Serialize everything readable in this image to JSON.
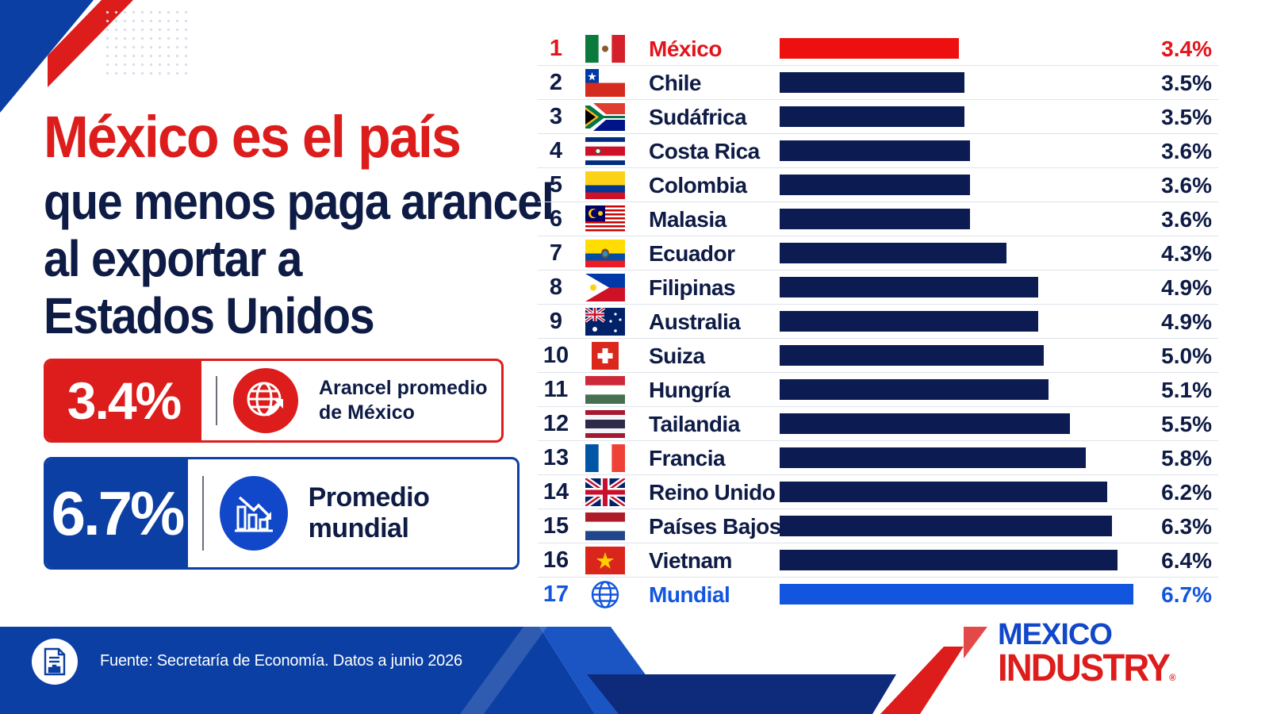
{
  "headline": {
    "line1": "México es el país",
    "line2": "que menos paga arancel",
    "line3": "al exportar a",
    "line4": "Estados Unidos"
  },
  "stat_cards": [
    {
      "value": "3.4%",
      "label": "Arancel promedio de México",
      "icon": "globe-arrow-icon",
      "color": "#dd1c1c"
    },
    {
      "value": "6.7%",
      "label": "Promedio mundial",
      "icon": "bar-chart-down-icon",
      "color": "#0b3fa3"
    }
  ],
  "chart_data": {
    "type": "bar",
    "orientation": "horizontal",
    "title": "",
    "xlabel": "",
    "ylabel": "",
    "xlim": [
      0,
      6.7
    ],
    "grid": false,
    "legend": "none",
    "unit": "%",
    "ranks": [
      "1",
      "2",
      "3",
      "4",
      "5",
      "6",
      "7",
      "8",
      "9",
      "10",
      "11",
      "12",
      "13",
      "14",
      "15",
      "16",
      "17"
    ],
    "categories": [
      "México",
      "Chile",
      "Sudáfrica",
      "Costa Rica",
      "Colombia",
      "Malasia",
      "Ecuador",
      "Filipinas",
      "Australia",
      "Suiza",
      "Hungría",
      "Tailandia",
      "Francia",
      "Reino Unido",
      "Países Bajos",
      "Vietnam",
      "Mundial"
    ],
    "values": [
      3.4,
      3.5,
      3.5,
      3.6,
      3.6,
      3.6,
      4.3,
      4.9,
      4.9,
      5.0,
      5.1,
      5.5,
      5.8,
      6.2,
      6.3,
      6.4,
      6.7
    ],
    "labels": [
      "3.4%",
      "3.5%",
      "3.5%",
      "3.6%",
      "3.6%",
      "3.6%",
      "4.3%",
      "4.9%",
      "4.9%",
      "5.0%",
      "5.1%",
      "5.5%",
      "5.8%",
      "6.2%",
      "6.3%",
      "6.4%",
      "6.7%"
    ],
    "flags": [
      "mexico-flag-icon",
      "chile-flag-icon",
      "south-africa-flag-icon",
      "costa-rica-flag-icon",
      "colombia-flag-icon",
      "malaysia-flag-icon",
      "ecuador-flag-icon",
      "philippines-flag-icon",
      "australia-flag-icon",
      "switzerland-flag-icon",
      "hungary-flag-icon",
      "thailand-flag-icon",
      "france-flag-icon",
      "uk-flag-icon",
      "netherlands-flag-icon",
      "vietnam-flag-icon",
      "globe-icon"
    ],
    "highlight": {
      "México": "#ee0f0f",
      "Mundial": "#1256e0"
    },
    "bar_color": "#0c1c52"
  },
  "footer": {
    "source": "Fuente: Secretaría de Economía. Datos a junio 2026",
    "icon": "document-chart-icon"
  },
  "logo": {
    "line1": "MEXICO",
    "line2": "INDUSTRY",
    "mark": "®"
  },
  "colors": {
    "red": "#dd1c1c",
    "navy": "#0e1b45",
    "blue": "#0b3fa3"
  }
}
